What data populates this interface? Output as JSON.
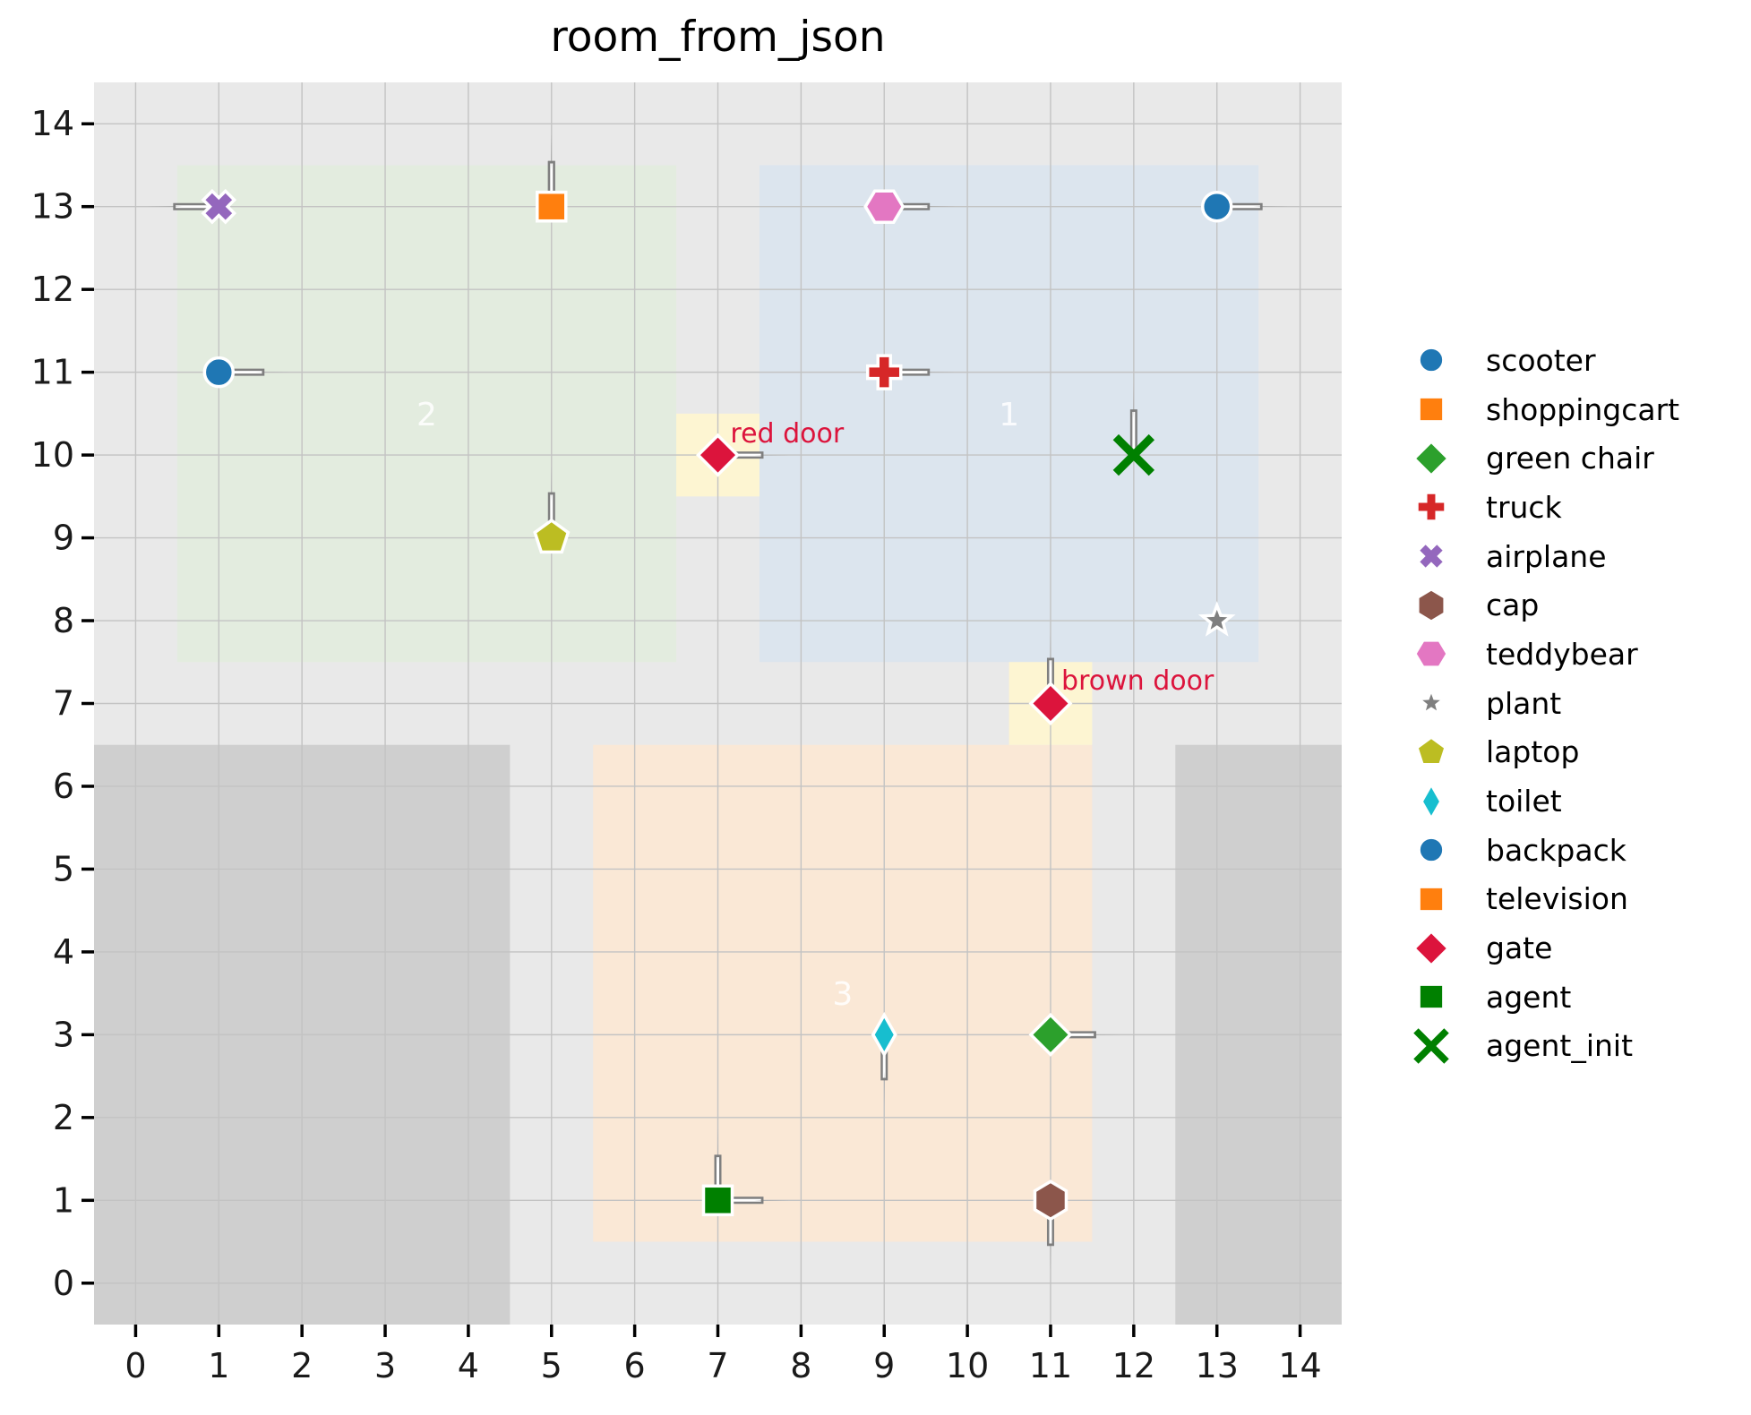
{
  "chart_data": {
    "type": "scatter",
    "title": "room_from_json",
    "xlabel": "",
    "ylabel": "",
    "xlim": [
      -0.5,
      14.5
    ],
    "ylim": [
      -0.5,
      14.5
    ],
    "xticks": [
      0,
      1,
      2,
      3,
      4,
      5,
      6,
      7,
      8,
      9,
      10,
      11,
      12,
      13,
      14
    ],
    "yticks": [
      0,
      1,
      2,
      3,
      4,
      5,
      6,
      7,
      8,
      9,
      10,
      11,
      12,
      13,
      14
    ],
    "grid": true,
    "legend_position": "right",
    "background_color": "#e9e9e9",
    "grid_color": "#c3c3c3",
    "arrow_color": "#7f7f7f",
    "marker_edge_color": "#ffffff",
    "regions": [
      {
        "name": "obstacle-left",
        "bounds": [
          -0.5,
          -0.5,
          4.5,
          6.5
        ],
        "color": "#cfcfcf"
      },
      {
        "name": "obstacle-right",
        "bounds": [
          12.5,
          -0.5,
          14.5,
          6.5
        ],
        "color": "#cfcfcf"
      },
      {
        "name": "room-2",
        "label": "2",
        "label_pos": [
          3.5,
          10.5
        ],
        "bounds": [
          0.5,
          7.5,
          6.5,
          13.5
        ],
        "color": "#e3ecdf"
      },
      {
        "name": "room-1",
        "label": "1",
        "label_pos": [
          10.5,
          10.5
        ],
        "bounds": [
          7.5,
          7.5,
          13.5,
          13.5
        ],
        "color": "#dce5ee"
      },
      {
        "name": "room-3",
        "label": "3",
        "label_pos": [
          8.5,
          3.5
        ],
        "bounds": [
          5.5,
          0.5,
          11.5,
          6.5
        ],
        "color": "#fae8d6"
      },
      {
        "name": "red-door-area",
        "bounds": [
          6.5,
          9.5,
          7.5,
          10.5
        ],
        "color": "#fdf5d2"
      },
      {
        "name": "brown-door-area",
        "bounds": [
          10.5,
          6.5,
          11.5,
          7.5
        ],
        "color": "#fdf5d2"
      }
    ],
    "door_labels": [
      {
        "text": "red door",
        "pos": [
          7.15,
          10.15
        ],
        "color": "#dc143c"
      },
      {
        "text": "brown door",
        "pos": [
          11.13,
          7.17
        ],
        "color": "#dc143c"
      }
    ],
    "objects": [
      {
        "name": "scooter",
        "marker": "circle",
        "color": "#1f77b4",
        "x": 1,
        "y": 11,
        "arrows": [
          "right"
        ]
      },
      {
        "name": "shoppingcart",
        "marker": "square",
        "color": "#ff7f0e",
        "x": 5,
        "y": 13,
        "arrows": [
          "up"
        ]
      },
      {
        "name": "television",
        "marker": "square",
        "color": "#ff7f0e",
        "x": 5,
        "y": 13,
        "arrows": [
          "up"
        ]
      },
      {
        "name": "airplane",
        "marker": "x-filled",
        "color": "#9467bd",
        "x": 1,
        "y": 13,
        "arrows": [
          "left"
        ]
      },
      {
        "name": "teddybear",
        "marker": "hexagon-h",
        "color": "#e377c2",
        "x": 9,
        "y": 13,
        "arrows": [
          "right"
        ]
      },
      {
        "name": "backpack",
        "marker": "circle",
        "color": "#1f77b4",
        "x": 13,
        "y": 13,
        "arrows": [
          "right"
        ]
      },
      {
        "name": "truck",
        "marker": "plus",
        "color": "#d62728",
        "x": 9,
        "y": 11,
        "arrows": [
          "right"
        ]
      },
      {
        "name": "gate",
        "marker": "diamond",
        "color": "#dc143c",
        "x": 7,
        "y": 10,
        "arrows": [
          "right"
        ]
      },
      {
        "name": "agent_init",
        "marker": "x-stroke",
        "color": "#008000",
        "x": 12,
        "y": 10,
        "arrows": [
          "up"
        ]
      },
      {
        "name": "laptop",
        "marker": "pentagon",
        "color": "#bcbd22",
        "x": 5,
        "y": 9,
        "arrows": [
          "up"
        ]
      },
      {
        "name": "plant",
        "marker": "star",
        "color": "#7f7f7f",
        "x": 13,
        "y": 8,
        "arrows": []
      },
      {
        "name": "gate",
        "marker": "diamond",
        "color": "#dc143c",
        "x": 11,
        "y": 7,
        "arrows": [
          "up"
        ]
      },
      {
        "name": "toilet",
        "marker": "thin-diamond",
        "color": "#17becf",
        "x": 9,
        "y": 3,
        "arrows": [
          "down"
        ]
      },
      {
        "name": "green chair",
        "marker": "diamond",
        "color": "#2ca02c",
        "x": 11,
        "y": 3,
        "arrows": [
          "right"
        ]
      },
      {
        "name": "agent",
        "marker": "square",
        "color": "#008000",
        "x": 7,
        "y": 1,
        "arrows": [
          "up",
          "right"
        ]
      },
      {
        "name": "cap",
        "marker": "hexagon-v",
        "color": "#8c564b",
        "x": 11,
        "y": 1,
        "arrows": [
          "down"
        ]
      }
    ],
    "legend": [
      {
        "label": "scooter",
        "marker": "circle",
        "color": "#1f77b4"
      },
      {
        "label": "shoppingcart",
        "marker": "square",
        "color": "#ff7f0e"
      },
      {
        "label": "green chair",
        "marker": "diamond",
        "color": "#2ca02c"
      },
      {
        "label": "truck",
        "marker": "plus",
        "color": "#d62728"
      },
      {
        "label": "airplane",
        "marker": "x-filled",
        "color": "#9467bd"
      },
      {
        "label": "cap",
        "marker": "hexagon-v",
        "color": "#8c564b"
      },
      {
        "label": "teddybear",
        "marker": "hexagon-h",
        "color": "#e377c2"
      },
      {
        "label": "plant",
        "marker": "star",
        "color": "#7f7f7f"
      },
      {
        "label": "laptop",
        "marker": "pentagon",
        "color": "#bcbd22"
      },
      {
        "label": "toilet",
        "marker": "thin-diamond",
        "color": "#17becf"
      },
      {
        "label": "backpack",
        "marker": "circle",
        "color": "#1f77b4"
      },
      {
        "label": "television",
        "marker": "square",
        "color": "#ff7f0e"
      },
      {
        "label": "gate",
        "marker": "diamond",
        "color": "#dc143c"
      },
      {
        "label": "agent",
        "marker": "square",
        "color": "#008000"
      },
      {
        "label": "agent_init",
        "marker": "x-stroke",
        "color": "#008000"
      }
    ]
  }
}
